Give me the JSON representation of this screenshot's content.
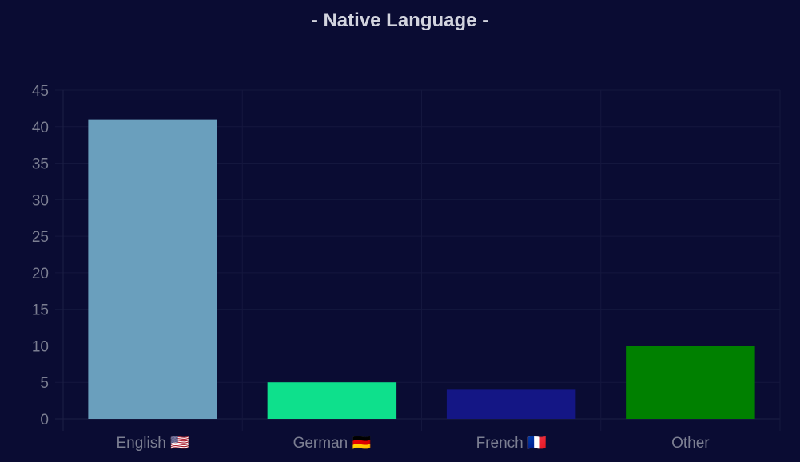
{
  "chart_data": {
    "type": "bar",
    "title": "- Native Language -",
    "categories": [
      "English 🇺🇸",
      "German 🇩🇪",
      "French 🇫🇷",
      "Other"
    ],
    "values": [
      41,
      5,
      4,
      10
    ],
    "colors": [
      "#6a9fbd",
      "#0ee08c",
      "#141685",
      "#008000"
    ],
    "ylim": [
      0,
      45
    ],
    "yticks": [
      0,
      5,
      10,
      15,
      20,
      25,
      30,
      35,
      40,
      45
    ],
    "grid": true,
    "legend": "none",
    "xlabel": "",
    "ylabel": ""
  },
  "colors": {
    "background": "#0a0c33",
    "text": "#7c7f92",
    "title": "#d2d4de",
    "grid": "#14173e"
  }
}
